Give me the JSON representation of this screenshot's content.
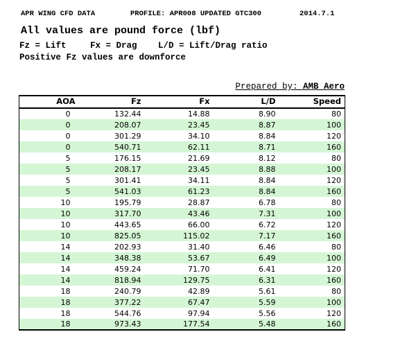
{
  "header": {
    "line1_left": "APR WING CFD DATA",
    "line1_mid": "PROFILE: APR008 UPDATED GTC300",
    "line1_right": "2014.7.1",
    "line2": "All values are pound force (lbf)",
    "line3_fz": "Fz = Lift",
    "line3_fx": "Fx = Drag",
    "line3_ld": "L/D = Lift/Drag ratio",
    "line4": "Positive Fz values are downforce",
    "prepared_label": "Prepared by: ",
    "prepared_value": "AMB Aero"
  },
  "table": {
    "columns": [
      "AOA",
      "Fz",
      "Fx",
      "L/D",
      "Speed"
    ],
    "rows": [
      [
        "0",
        "132.44",
        "14.88",
        "8.90",
        "80"
      ],
      [
        "0",
        "208.07",
        "23.45",
        "8.87",
        "100"
      ],
      [
        "0",
        "301.29",
        "34.10",
        "8.84",
        "120"
      ],
      [
        "0",
        "540.71",
        "62.11",
        "8.71",
        "160"
      ],
      [
        "5",
        "176.15",
        "21.69",
        "8.12",
        "80"
      ],
      [
        "5",
        "208.17",
        "23.45",
        "8.88",
        "100"
      ],
      [
        "5",
        "301.41",
        "34.11",
        "8.84",
        "120"
      ],
      [
        "5",
        "541.03",
        "61.23",
        "8.84",
        "160"
      ],
      [
        "10",
        "195.79",
        "28.87",
        "6.78",
        "80"
      ],
      [
        "10",
        "317.70",
        "43.46",
        "7.31",
        "100"
      ],
      [
        "10",
        "443.65",
        "66.00",
        "6.72",
        "120"
      ],
      [
        "10",
        "825.05",
        "115.02",
        "7.17",
        "160"
      ],
      [
        "14",
        "202.93",
        "31.40",
        "6.46",
        "80"
      ],
      [
        "14",
        "348.38",
        "53.67",
        "6.49",
        "100"
      ],
      [
        "14",
        "459.24",
        "71.70",
        "6.41",
        "120"
      ],
      [
        "14",
        "818.94",
        "129.75",
        "6.31",
        "160"
      ],
      [
        "18",
        "240.79",
        "42.89",
        "5.61",
        "80"
      ],
      [
        "18",
        "377.22",
        "67.47",
        "5.59",
        "100"
      ],
      [
        "18",
        "544.76",
        "97.94",
        "5.56",
        "120"
      ],
      [
        "18",
        "973.43",
        "177.54",
        "5.48",
        "160"
      ]
    ]
  },
  "colors": {
    "row_band": "#d4f6d4",
    "border": "#000000",
    "text": "#000000",
    "background": "#ffffff"
  }
}
